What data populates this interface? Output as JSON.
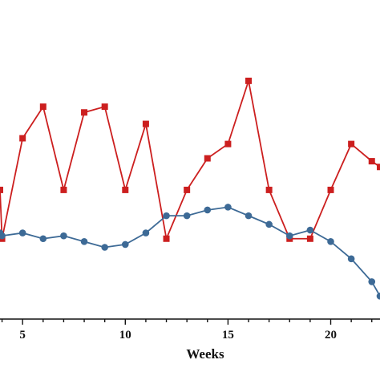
{
  "chart_data": {
    "type": "line",
    "title": "",
    "xlabel": "Weeks",
    "ylabel": "",
    "xlim": [
      3.9,
      22.4
    ],
    "ylim": [
      0,
      1
    ],
    "x_ticks": [
      5,
      10,
      15,
      20
    ],
    "grid": false,
    "legend": "none",
    "x": [
      4,
      5,
      6,
      7,
      8,
      9,
      10,
      11,
      12,
      13,
      14,
      15,
      16,
      17,
      18,
      19,
      20,
      21,
      22,
      22.4
    ],
    "series": [
      {
        "color": "#cc1f1f",
        "marker": "square",
        "x": [
          3.9,
          4,
          5,
          6,
          7,
          8,
          9,
          10,
          11,
          12,
          13,
          14,
          15,
          16,
          17,
          18,
          19,
          20,
          21,
          22,
          22.4
        ],
        "values": [
          0.45,
          0.28,
          0.63,
          0.74,
          0.45,
          0.72,
          0.74,
          0.45,
          0.68,
          0.28,
          0.45,
          0.56,
          0.61,
          0.83,
          0.45,
          0.28,
          0.28,
          0.45,
          0.61,
          0.55,
          0.53
        ]
      },
      {
        "color": "#3d6a96",
        "marker": "circle",
        "x": [
          3.9,
          4,
          5,
          6,
          7,
          8,
          9,
          10,
          11,
          12,
          13,
          14,
          15,
          16,
          17,
          18,
          19,
          20,
          21,
          22,
          22.4
        ],
        "values": [
          0.3,
          0.29,
          0.3,
          0.28,
          0.29,
          0.27,
          0.25,
          0.26,
          0.3,
          0.36,
          0.36,
          0.38,
          0.39,
          0.36,
          0.33,
          0.29,
          0.31,
          0.27,
          0.21,
          0.13,
          0.08
        ]
      }
    ]
  }
}
